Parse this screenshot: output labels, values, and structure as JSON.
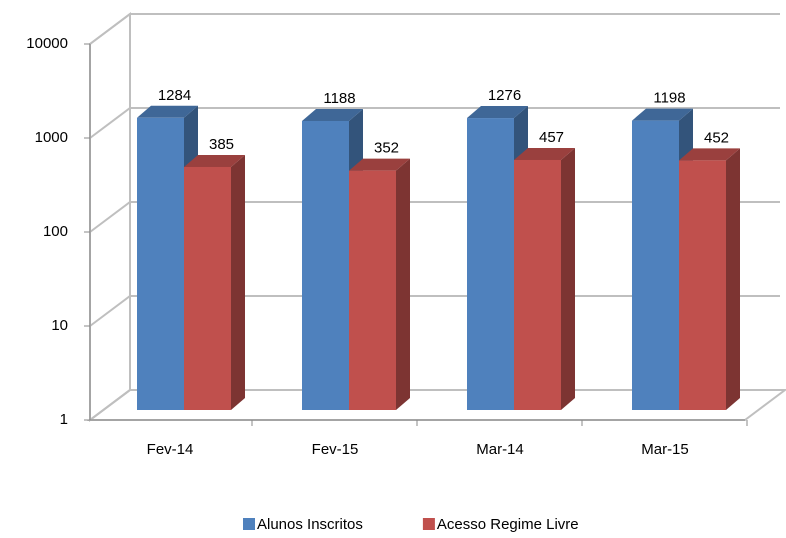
{
  "chart_data": {
    "type": "bar3d",
    "categories": [
      "Fev-14",
      "Fev-15",
      "Mar-14",
      "Mar-15"
    ],
    "series": [
      {
        "name": "Alunos Inscritos",
        "color": "#4f81bd",
        "values": [
          1284,
          1188,
          1276,
          1198
        ]
      },
      {
        "name": "Acesso Regime Livre",
        "color": "#c0504d",
        "values": [
          385,
          352,
          457,
          452
        ]
      }
    ],
    "ylim": [
      1,
      10000
    ],
    "yticks": [
      1,
      10,
      100,
      1000,
      10000
    ],
    "ylog": true,
    "grid": true,
    "legend": "bottom"
  }
}
